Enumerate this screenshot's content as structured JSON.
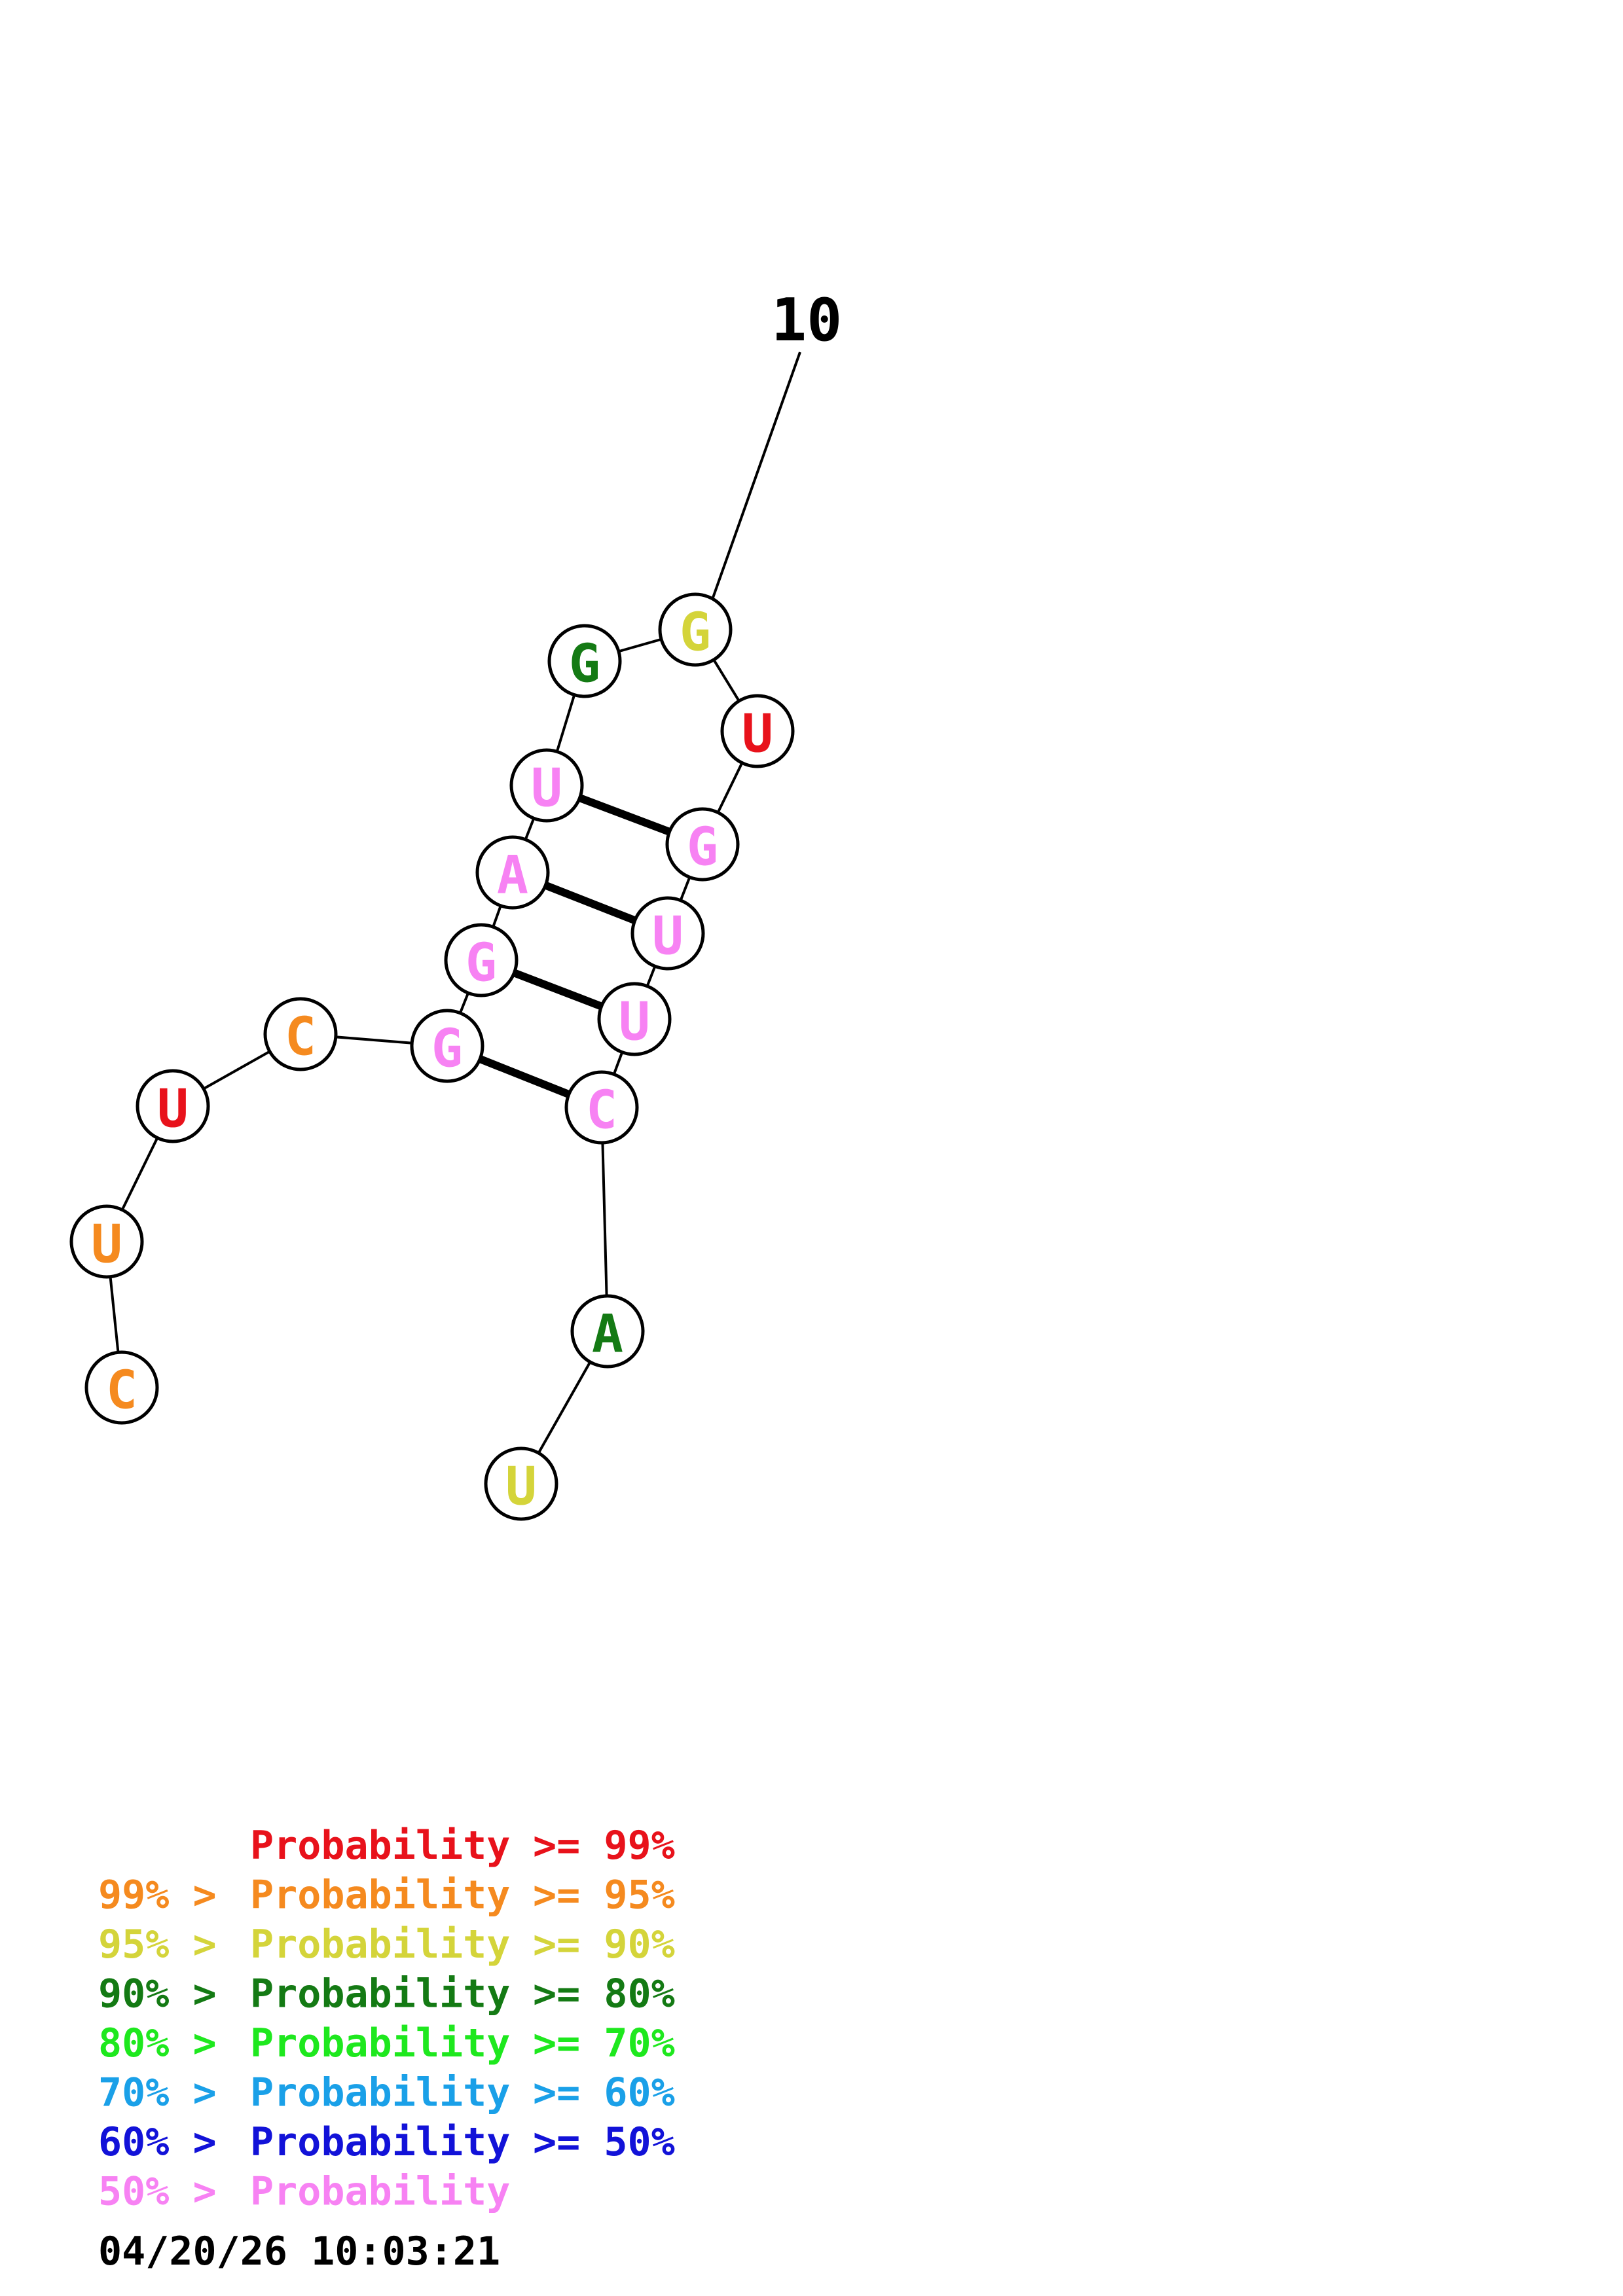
{
  "sequence": [
    {
      "index": 1,
      "base": "C",
      "color": "#f58a1f"
    },
    {
      "index": 2,
      "base": "U",
      "color": "#f58a1f"
    },
    {
      "index": 3,
      "base": "U",
      "color": "#e8121b"
    },
    {
      "index": 4,
      "base": "C",
      "color": "#f58a1f"
    },
    {
      "index": 5,
      "base": "G",
      "color": "#f782f3"
    },
    {
      "index": 6,
      "base": "G",
      "color": "#f782f3"
    },
    {
      "index": 7,
      "base": "A",
      "color": "#f782f3"
    },
    {
      "index": 8,
      "base": "U",
      "color": "#f782f3"
    },
    {
      "index": 9,
      "base": "G",
      "color": "#147a14"
    },
    {
      "index": 10,
      "base": "G",
      "color": "#d4d43a"
    },
    {
      "index": 11,
      "base": "U",
      "color": "#e8121b"
    },
    {
      "index": 12,
      "base": "G",
      "color": "#f782f3"
    },
    {
      "index": 13,
      "base": "U",
      "color": "#f782f3"
    },
    {
      "index": 14,
      "base": "U",
      "color": "#f782f3"
    },
    {
      "index": 15,
      "base": "C",
      "color": "#f782f3"
    },
    {
      "index": 16,
      "base": "A",
      "color": "#147a14"
    },
    {
      "index": 17,
      "base": "U",
      "color": "#d4d43a"
    }
  ],
  "pairs": [
    [
      5,
      15
    ],
    [
      6,
      14
    ],
    [
      7,
      13
    ],
    [
      8,
      12
    ]
  ],
  "number_label": {
    "text": "10",
    "nucleotide": 10
  },
  "legend": [
    {
      "prefix": "",
      "label": "Probability",
      "suffix": ">= 99%",
      "color": "#e8121b"
    },
    {
      "prefix": "99% >",
      "label": "Probability",
      "suffix": ">= 95%",
      "color": "#f58a1f"
    },
    {
      "prefix": "95% >",
      "label": "Probability",
      "suffix": ">= 90%",
      "color": "#d4d43a"
    },
    {
      "prefix": "90% >",
      "label": "Probability",
      "suffix": ">= 80%",
      "color": "#147a14"
    },
    {
      "prefix": "80% >",
      "label": "Probability",
      "suffix": ">= 70%",
      "color": "#1ee81e"
    },
    {
      "prefix": "70% >",
      "label": "Probability",
      "suffix": ">= 60%",
      "color": "#1aa0e8"
    },
    {
      "prefix": "60% >",
      "label": "Probability",
      "suffix": ">= 50%",
      "color": "#1212d8"
    },
    {
      "prefix": "50% >",
      "label": "Probability",
      "suffix": "",
      "color": "#f782f3"
    }
  ],
  "timestamp": "04/20/26 10:03:21"
}
